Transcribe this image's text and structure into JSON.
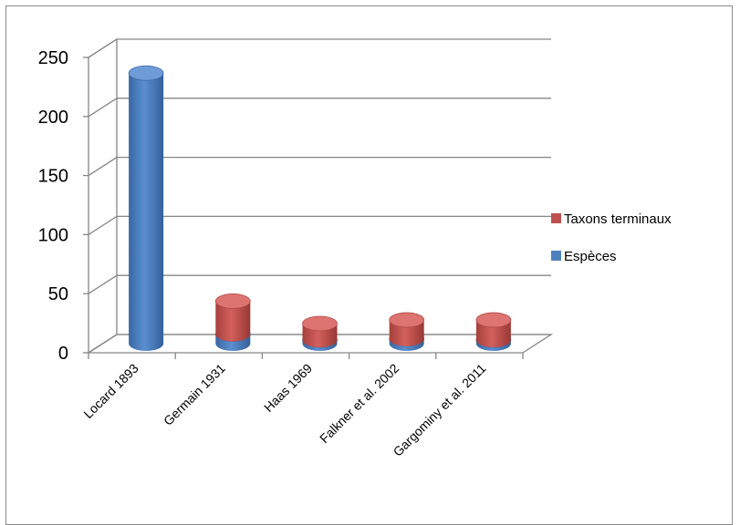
{
  "chart_data": {
    "type": "bar",
    "style": "3d-cylinder-stacked",
    "title": "",
    "xlabel": "",
    "ylabel": "",
    "ylim": [
      0,
      250
    ],
    "yticks": [
      0,
      50,
      100,
      150,
      200,
      250
    ],
    "grid": true,
    "legend_position": "right",
    "categories": [
      "Locard 1893",
      "Germain 1931",
      "Haas 1969",
      "Falkner et al. 2002",
      "Gargominy et al. 2011"
    ],
    "series": [
      {
        "name": "Espèces",
        "color": "#4f81bd",
        "values": [
          229,
          8,
          3,
          4,
          3
        ]
      },
      {
        "name": "Taxons terminaux",
        "color": "#c0504d",
        "values": [
          0,
          28,
          14,
          16,
          17
        ]
      }
    ],
    "legend_order": [
      "Taxons terminaux",
      "Espèces"
    ]
  }
}
